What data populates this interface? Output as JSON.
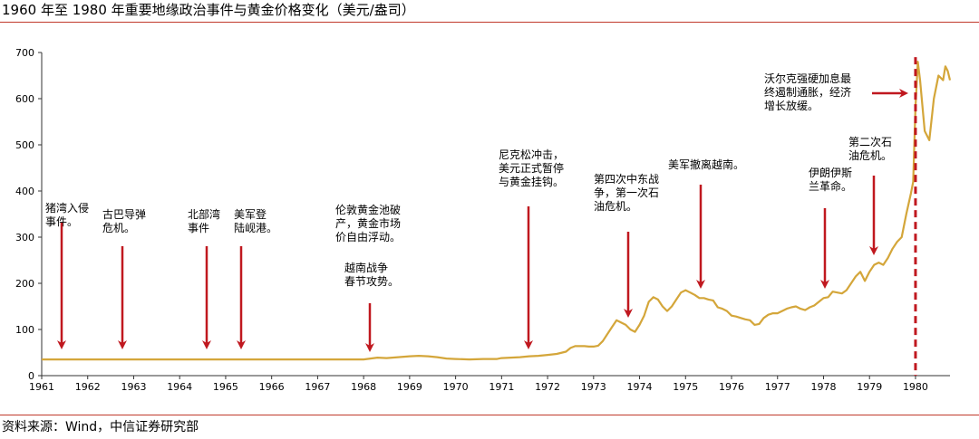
{
  "title": "1960 年至 1980 年重要地缘政治事件与黄金价格变化（美元/盎司）",
  "source": "资料来源：Wind，中信证券研究部",
  "colors": {
    "line": "#d4a63a",
    "arrow": "#c0181f",
    "rule": "#c0392b",
    "axis": "#333333"
  },
  "chart_data": {
    "type": "line",
    "title": "1960 年至 1980 年重要地缘政治事件与黄金价格变化（美元/盎司）",
    "xlabel": "",
    "ylabel": "",
    "xlim": [
      1961,
      1980.75
    ],
    "ylim": [
      0,
      700
    ],
    "x_ticks": [
      "1961",
      "1962",
      "1963",
      "1964",
      "1965",
      "1966",
      "1967",
      "1968",
      "1969",
      "1970",
      "1971",
      "1972",
      "1973",
      "1974",
      "1975",
      "1976",
      "1977",
      "1978",
      "1979",
      "1980"
    ],
    "y_ticks": [
      "0",
      "100",
      "200",
      "300",
      "400",
      "500",
      "600",
      "700"
    ],
    "grid": false,
    "series": [
      {
        "x": [
          1961,
          1962,
          1963,
          1964,
          1965,
          1966,
          1967,
          1968,
          1968.15,
          1968.3,
          1968.5,
          1968.75,
          1969,
          1969.2,
          1969.4,
          1969.6,
          1969.8,
          1970,
          1970.3,
          1970.6,
          1970.9,
          1971,
          1971.2,
          1971.4,
          1971.6,
          1971.8,
          1972,
          1972.2,
          1972.4,
          1972.5,
          1972.6,
          1972.8,
          1972.9,
          1973,
          1973.1,
          1973.2,
          1973.3,
          1973.4,
          1973.5,
          1973.6,
          1973.7,
          1973.8,
          1973.9,
          1974,
          1974.1,
          1974.2,
          1974.3,
          1974.4,
          1974.5,
          1974.6,
          1974.7,
          1974.8,
          1974.9,
          1975,
          1975.1,
          1975.2,
          1975.3,
          1975.4,
          1975.5,
          1975.6,
          1975.7,
          1975.8,
          1975.9,
          1976,
          1976.1,
          1976.2,
          1976.3,
          1976.4,
          1976.5,
          1976.6,
          1976.7,
          1976.8,
          1976.9,
          1977,
          1977.1,
          1977.2,
          1977.3,
          1977.4,
          1977.5,
          1977.6,
          1977.7,
          1977.8,
          1977.9,
          1978,
          1978.1,
          1978.2,
          1978.3,
          1978.4,
          1978.5,
          1978.6,
          1978.7,
          1978.8,
          1978.9,
          1979,
          1979.1,
          1979.2,
          1979.3,
          1979.4,
          1979.5,
          1979.6,
          1979.7,
          1979.8,
          1979.9,
          1979.95,
          1980,
          1980.05,
          1980.1,
          1980.2,
          1980.3,
          1980.4,
          1980.5,
          1980.6,
          1980.65,
          1980.7,
          1980.75
        ],
        "values": [
          35,
          35,
          35,
          35,
          35,
          35,
          35,
          35,
          37,
          39,
          38,
          40,
          42,
          43,
          42,
          40,
          37,
          36,
          35,
          36,
          36,
          38,
          39,
          40,
          42,
          43,
          45,
          47,
          52,
          60,
          64,
          64,
          63,
          63,
          65,
          75,
          90,
          105,
          120,
          115,
          110,
          100,
          95,
          110,
          130,
          160,
          170,
          165,
          150,
          140,
          150,
          165,
          180,
          185,
          180,
          175,
          168,
          168,
          165,
          163,
          148,
          145,
          140,
          130,
          128,
          125,
          122,
          120,
          110,
          112,
          125,
          132,
          135,
          135,
          140,
          145,
          148,
          150,
          145,
          142,
          148,
          152,
          160,
          168,
          170,
          182,
          180,
          178,
          185,
          200,
          215,
          225,
          205,
          225,
          240,
          245,
          240,
          255,
          275,
          290,
          300,
          350,
          395,
          420,
          580,
          680,
          640,
          530,
          510,
          600,
          650,
          640,
          670,
          660,
          640
        ]
      }
    ],
    "events": [
      {
        "label": [
          "猪湾入侵",
          "事件。"
        ],
        "x": 1961.4,
        "arrow_from": 275,
        "arrow_to": 58,
        "label_y": 345
      },
      {
        "label": [
          "古巴导弹",
          "危机。"
        ],
        "x": 1962.75,
        "arrow_from": 275,
        "arrow_to": 58,
        "label_y": 345
      },
      {
        "label": [
          "北部湾",
          "事件"
        ],
        "x": 1964.6,
        "arrow_from": 275,
        "arrow_to": 58,
        "label_y": 345
      },
      {
        "label": [
          "美军登",
          "陆岘港。"
        ],
        "x": 1965.35,
        "arrow_from": 275,
        "arrow_to": 58,
        "label_y": 345
      },
      {
        "label": [
          "伦敦黄金池破",
          "产，黄金市场",
          "价自由浮动。"
        ],
        "x": 1968.1,
        "arrow_from": 0,
        "arrow_to": 0,
        "label_y": 370
      },
      {
        "label": [
          "越南战争",
          "春节攻势。"
        ],
        "x": 1968.1,
        "arrow_from": 160,
        "arrow_to": 60,
        "label_y": 240
      },
      {
        "label": [
          "尼克松冲击，",
          "美元正式暂停",
          "与黄金挂钩。"
        ],
        "x": 1971.6,
        "arrow_from": 365,
        "arrow_to": 65,
        "label_y": 495
      },
      {
        "label": [
          "第四次中东战",
          "争，第一次石",
          "油危机。"
        ],
        "x": 1973.8,
        "arrow_from": 310,
        "arrow_to": 135,
        "label_y": 420
      },
      {
        "label": [
          "美军撤离越南。"
        ],
        "x": 1975.35,
        "arrow_from": 415,
        "arrow_to": 185,
        "label_y": 465
      },
      {
        "label": [
          "伊朗伊斯",
          "兰革命。"
        ],
        "x": 1978.05,
        "arrow_from": 360,
        "arrow_to": 200,
        "label_y": 435
      },
      {
        "label": [
          "第二次石",
          "油危机。"
        ],
        "x": 1979.1,
        "arrow_from": 435,
        "arrow_to": 275,
        "label_y": 505
      },
      {
        "label": [
          "沃尔克强硬加息最",
          "终遏制通胀，经济",
          "增长放缓。"
        ],
        "x": 1980,
        "arrow_from": 0,
        "arrow_to": 0,
        "label_y": 645
      }
    ],
    "vertical_marker_x": 1980
  }
}
